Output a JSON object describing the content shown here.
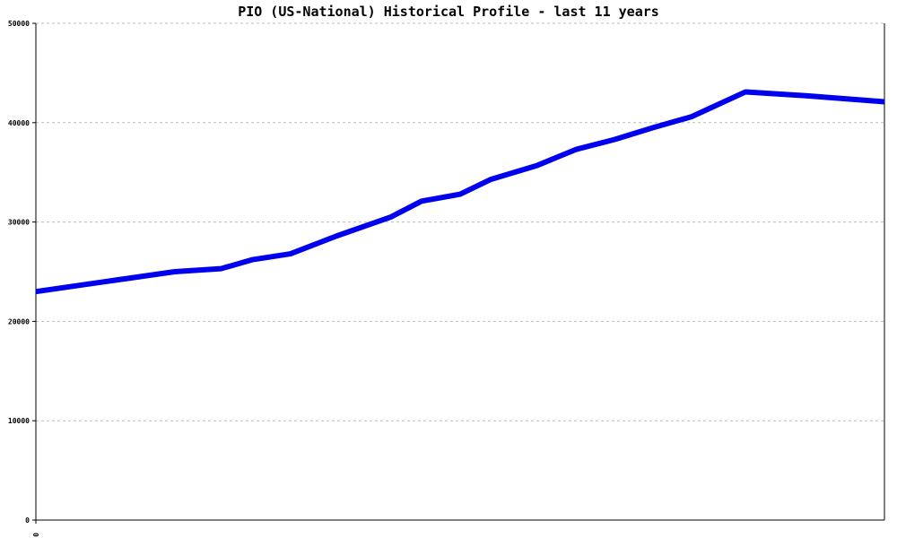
{
  "chart_data": {
    "type": "line",
    "title": "PIO (US-National) Historical Profile - last 11 years",
    "xlabel": "",
    "ylabel": "",
    "ylim": [
      0,
      50000
    ],
    "yticks": [
      "0",
      "10000",
      "20000",
      "30000",
      "40000",
      "50000"
    ],
    "xticks": [
      "0"
    ],
    "grid": true,
    "legend": "none",
    "x": [
      0,
      0.9,
      1.8,
      2.4,
      2.8,
      3.3,
      3.9,
      4.6,
      5.0,
      5.5,
      5.9,
      6.5,
      7.0,
      7.5,
      8.0,
      8.5,
      9.2,
      10.0,
      11.0
    ],
    "series": [
      {
        "color": "#0000ee",
        "values": [
          23000,
          24000,
          25000,
          25300,
          26200,
          26800,
          28600,
          30500,
          32100,
          32800,
          34300,
          35700,
          37300,
          38300,
          39500,
          40600,
          43100,
          42700,
          42100
        ]
      }
    ]
  }
}
